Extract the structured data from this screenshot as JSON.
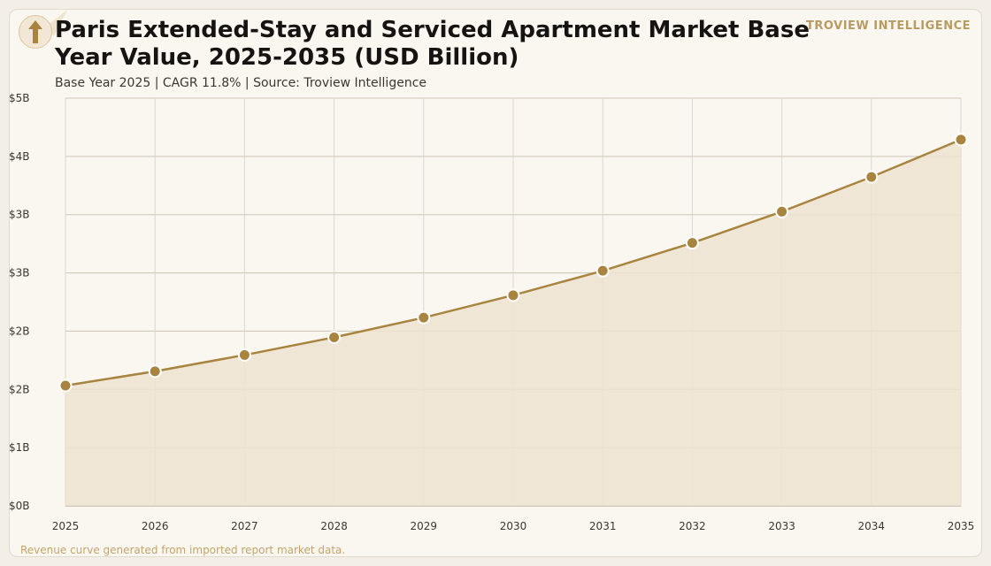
{
  "header": {
    "title": "Paris Extended-Stay and Serviced Apartment Market Base Year Value, 2025-2035 (USD Billion)",
    "subtitle": "Base Year 2025 | CAGR 11.8% | Source: Troview Intelligence",
    "brand": "TROVIEW INTELLIGENCE"
  },
  "footer": {
    "note": "Revenue curve generated from imported report market data."
  },
  "icons": {
    "logo": "up-arrow-icon"
  },
  "colors": {
    "line": "#a8843f",
    "marker": "#a8843f",
    "area": "#ede3d1",
    "brand": "#b99a62",
    "grid": "#cdc5b6"
  },
  "chart_data": {
    "type": "area",
    "title": "Paris Extended-Stay and Serviced Apartment Market Base Year Value, 2025-2035 (USD Billion)",
    "categories": [
      "2025",
      "2026",
      "2027",
      "2028",
      "2029",
      "2030",
      "2031",
      "2032",
      "2033",
      "2034",
      "2035"
    ],
    "series": [
      {
        "values": [
          1.77,
          1.98,
          2.22,
          2.48,
          2.77,
          3.1,
          3.46,
          3.87,
          4.33,
          4.84,
          5.39
        ]
      }
    ],
    "y_ticks": [
      "$0B",
      "$1B",
      "$2B",
      "$2B",
      "$3B",
      "$3B",
      "$4B",
      "$5B"
    ],
    "ylim": [
      0,
      6.0
    ],
    "xlabel": "",
    "ylabel": "",
    "grid": true,
    "markers": true
  }
}
